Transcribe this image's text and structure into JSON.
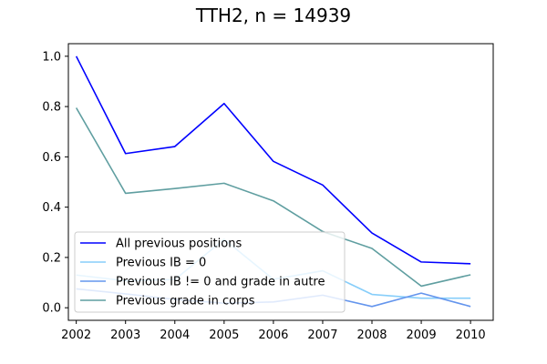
{
  "chart_data": {
    "type": "line",
    "title": "TTH2, n = 14939",
    "xlabel": "",
    "ylabel": "",
    "x": [
      2002,
      2003,
      2004,
      2005,
      2006,
      2007,
      2008,
      2009,
      2010
    ],
    "xlim": [
      2001.84,
      2010.46
    ],
    "ylim": [
      -0.05,
      1.05
    ],
    "yticks": [
      0.0,
      0.2,
      0.4,
      0.6,
      0.8,
      1.0
    ],
    "ytick_labels": [
      "0.0",
      "0.2",
      "0.4",
      "0.6",
      "0.8",
      "1.0"
    ],
    "xtick_labels": [
      "2002",
      "2003",
      "2004",
      "2005",
      "2006",
      "2007",
      "2008",
      "2009",
      "2010"
    ],
    "grid": false,
    "legend_position": "lower-left",
    "series": [
      {
        "name": "All previous positions",
        "color": "#0000ff",
        "values": [
          1.0,
          0.613,
          0.641,
          0.812,
          0.582,
          0.488,
          0.297,
          0.182,
          0.175
        ]
      },
      {
        "name": "Previous IB = 0",
        "color": "#87cefa",
        "values": [
          0.13,
          0.107,
          0.112,
          0.272,
          0.113,
          0.147,
          0.053,
          0.038,
          0.038
        ]
      },
      {
        "name": "Previous IB != 0 and grade in autre",
        "color": "#6495ed",
        "values": [
          0.075,
          0.055,
          0.033,
          0.018,
          0.023,
          0.05,
          0.005,
          0.058,
          0.005
        ]
      },
      {
        "name": "Previous grade in corps",
        "color": "#5f9ea0",
        "values": [
          0.795,
          0.455,
          0.474,
          0.495,
          0.425,
          0.303,
          0.236,
          0.086,
          0.131
        ]
      }
    ]
  }
}
